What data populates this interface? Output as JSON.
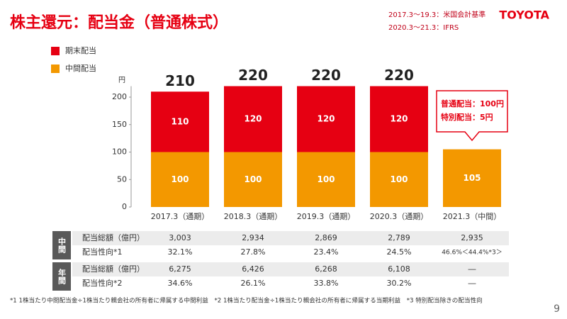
{
  "header": {
    "title": "株主還元：配当金（普通株式）",
    "notes": [
      "2017.3～19.3：米国会計基準",
      "2020.3～21.3：IFRS"
    ],
    "logo": "TOYOTA",
    "page": "9"
  },
  "chart_data": {
    "type": "stacked-bar",
    "y_unit": "円",
    "categories": [
      "2017.3（通期）",
      "2018.3（通期）",
      "2019.3（通期）",
      "2020.3（通期）",
      "2021.3（中間）"
    ],
    "series": [
      {
        "name": "中間配当",
        "color": "#f39800",
        "values": [
          100,
          100,
          100,
          100,
          105
        ]
      },
      {
        "name": "期末配当",
        "color": "#e60012",
        "values": [
          110,
          120,
          120,
          120,
          null
        ]
      }
    ],
    "totals": [
      210,
      220,
      220,
      220,
      null
    ],
    "ylim": [
      0,
      220
    ],
    "yticks": [
      0,
      50,
      100,
      150,
      200
    ],
    "annotation": [
      "普通配当：100円",
      "特別配当：5円"
    ]
  },
  "table": {
    "groups": [
      "中間",
      "年間"
    ],
    "rows": [
      [
        "配当総額（億円）",
        "3,003",
        "2,934",
        "2,869",
        "2,789",
        "2,935"
      ],
      [
        "配当性向*1",
        "32.1%",
        "27.8%",
        "23.4%",
        "24.5%",
        "46.6%＜44.4%*3＞"
      ],
      [
        "配当総額（億円）",
        "6,275",
        "6,426",
        "6,268",
        "6,108",
        "―"
      ],
      [
        "配当性向*2",
        "34.6%",
        "26.1%",
        "33.8%",
        "30.2%",
        "―"
      ]
    ]
  },
  "footnote": "*1 1株当たり中間配当金÷1株当たり親会社の所有者に帰属する中間利益　*2 1株当たり配当金÷1株当たり親会社の所有者に帰属する当期利益　*3 特別配当除きの配当性向"
}
